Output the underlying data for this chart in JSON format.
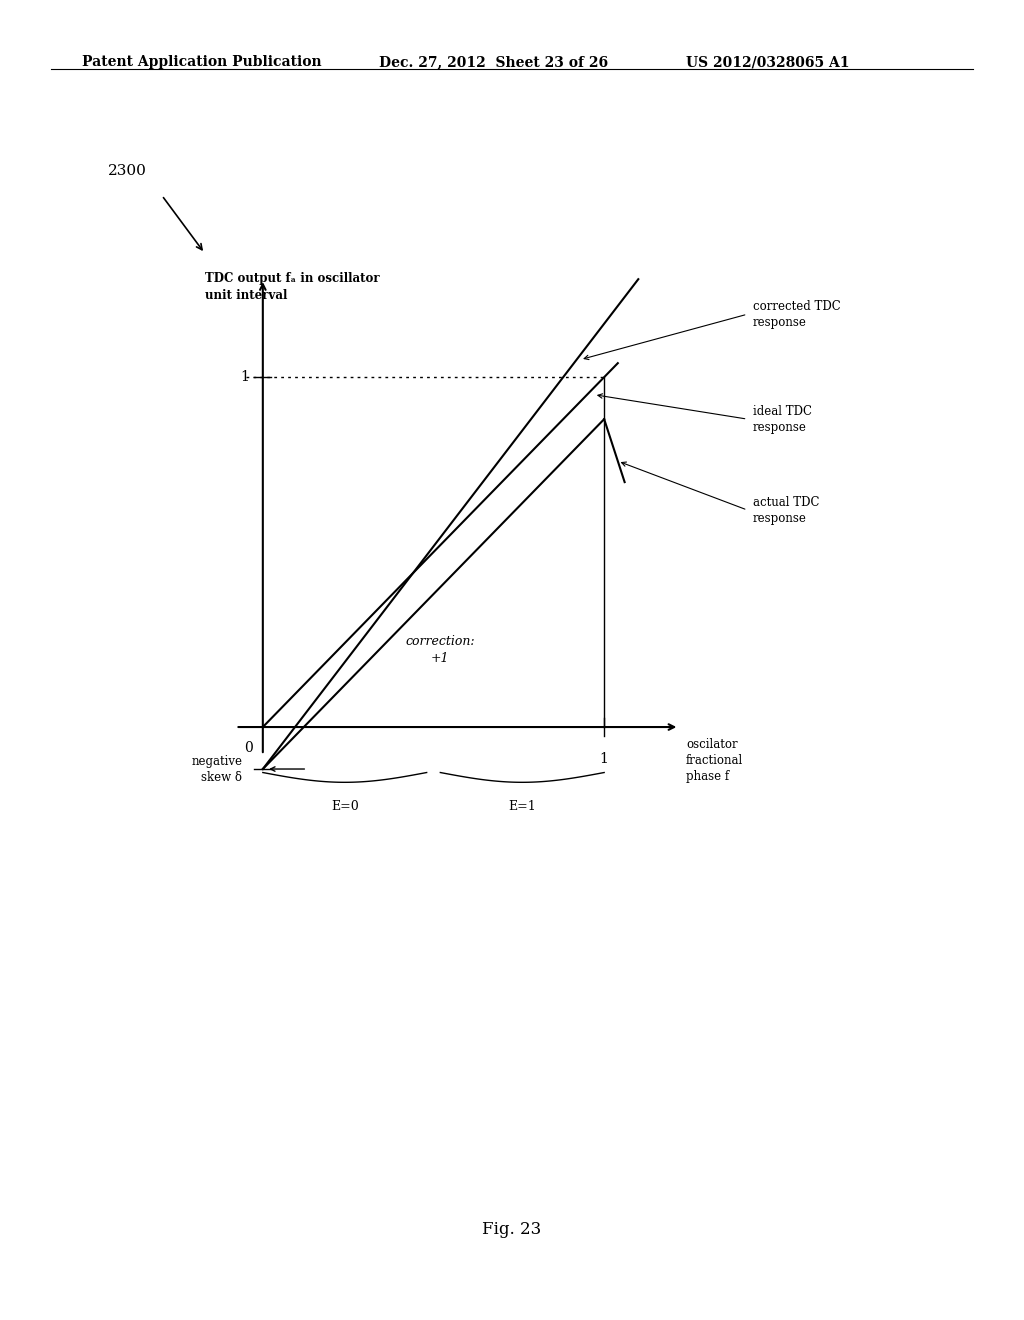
{
  "background_color": "#ffffff",
  "header_left": "Patent Application Publication",
  "header_center": "Dec. 27, 2012  Sheet 23 of 26",
  "header_right": "US 2012/0328065 A1",
  "figure_label": "2300",
  "fig_caption": "Fig. 23",
  "diagram": {
    "ylabel": "TDC output fₐ in oscillator\nunit interval",
    "xlabel": "oscilator\nfractional\nphase f",
    "negative_skew_label": "negative\nskew δ",
    "correction_label": "correction:\n+1",
    "e0_label": "E=0",
    "e1_label": "E=1",
    "corrected_label": "corrected TDC\nresponse",
    "ideal_label": "ideal TDC\nresponse",
    "actual_label": "actual TDC\nresponse",
    "line_color": "#000000",
    "delta": 0.12
  }
}
